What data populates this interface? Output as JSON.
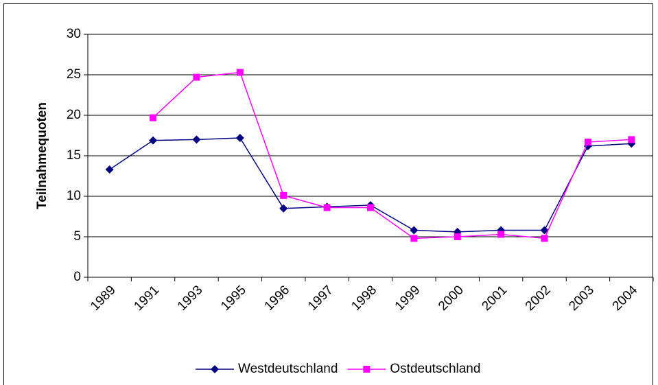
{
  "chart_data": {
    "type": "line",
    "y_label": "Teilnahmequoten",
    "categories": [
      "1989",
      "1991",
      "1993",
      "1995",
      "1996",
      "1997",
      "1998",
      "1999",
      "2000",
      "2001",
      "2002",
      "2003",
      "2004"
    ],
    "series": [
      {
        "name": "Westdeutschland",
        "color": "#000080",
        "marker": "diamond",
        "values": [
          13.3,
          16.9,
          17.0,
          17.2,
          8.5,
          8.7,
          8.9,
          5.8,
          5.6,
          5.8,
          5.8,
          16.2,
          16.5
        ]
      },
      {
        "name": "Ostdeutschland",
        "color": "#ff00ff",
        "marker": "square",
        "values": [
          null,
          19.7,
          24.7,
          25.3,
          10.1,
          8.6,
          8.6,
          4.8,
          5.0,
          5.3,
          4.8,
          16.7,
          17.0
        ]
      }
    ],
    "ylim": [
      0,
      30
    ],
    "yticks": [
      0,
      5,
      10,
      15,
      20,
      25,
      30
    ],
    "grid": true,
    "legend": "bottom"
  }
}
